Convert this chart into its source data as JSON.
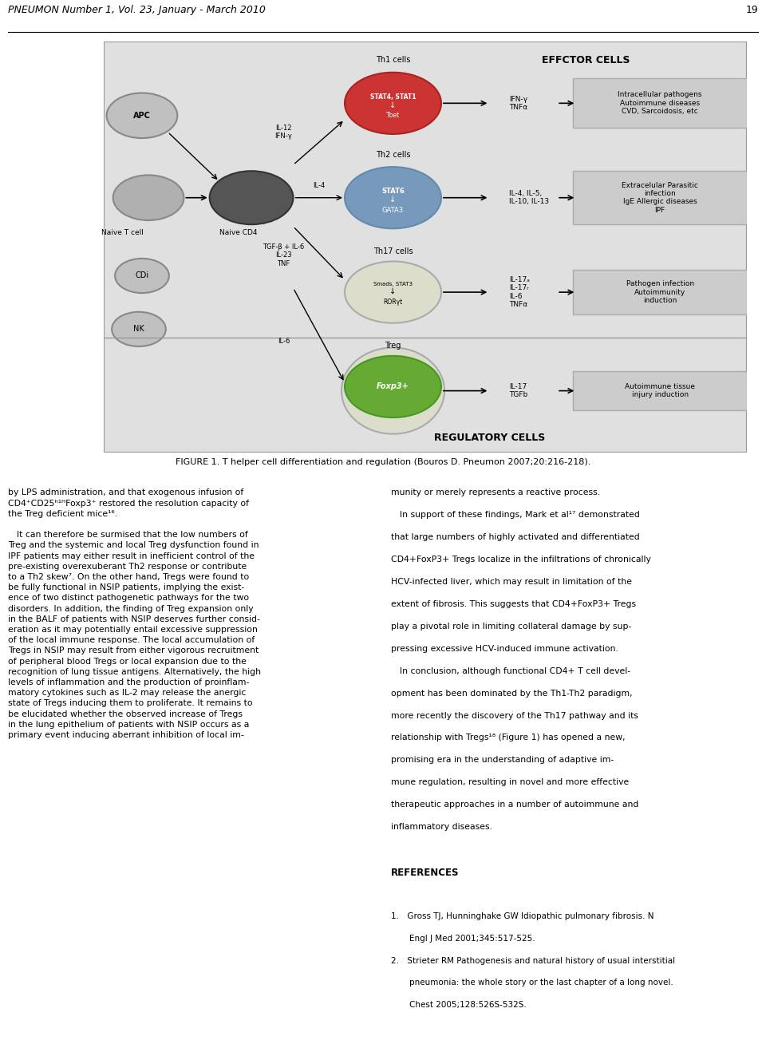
{
  "header_text": "PNEUMON Number 1, Vol. 23, January - March 2010",
  "page_number": "19",
  "figure_caption": "FIGURE 1. T helper cell differentiation and regulation (Bouros D. Pneumon 2007;20:216-218).",
  "diagram": {
    "bg_color": "#e8e8e8",
    "effector_label": "EFFCTOR CELLS",
    "regulatory_label": "REGULATORY CELLS",
    "th1_label": "Th1 cells",
    "th2_label": "Th2 cells",
    "th17_label": "Th17 cells",
    "treg_label": "Treg",
    "naive_t_label": "Naive T cell",
    "naive_cd4_label": "Naive CD4",
    "apc_label": "APC",
    "cdi_label": "CDi",
    "nk_label": "NK",
    "th1_circle_color": "#cc2222",
    "th2_circle_color": "#7799cc",
    "th17_circle_color": "#ddddcc",
    "treg_circle_color": "#66aa33",
    "naive_circle_color": "#aaaaaa",
    "il12_label": "IL-12\nIFN-γ",
    "il4_label": "IL-4",
    "tgfb_il6_label": "TGF-β + IL-6\nIL-23\nTNF",
    "il6_label": "IL-6",
    "th1_stat_label": "STAT4, STAT1\n↓\nTbet",
    "th2_stat_label": "STAT6\n↓\nGATA3",
    "th17_stat_label": "Smads, STAT3\n↓\nRORγt",
    "treg_stat_label": "Foxp3+",
    "th1_output": "IFN-γ\nTNFα",
    "th2_output": "IL-4, IL-5,\nIL-10, IL-13",
    "th17_output": "IL-17A\nIL-17r\nIL-6\nTNFα",
    "treg_output": "IL-17\nTGFb",
    "box1_label": "Intracellular pathogens\nAutoimmune diseases\nCVD, Sarcoidosis, etc",
    "box2_label": "Extracelular Parasitic\ninfection\nIgE Allergic diseases\nIPF",
    "box3_label": "Pathogen infection\nAutoimmunity\ninduction",
    "box4_label": "Autoimmune tissue\ninjury induction",
    "box_color": "#bbbbbb"
  },
  "left_column_text": [
    "by LPS administration, and that exogenous infusion of",
    "CD4⁺CD25ʰ¹ᴴFoxp3⁺ restored the resolution capacity of",
    "the Treg deficient mice¹⁶.",
    "",
    " It can therefore be surmised that the low numbers of",
    "Treg and the systemic and local Treg dysfunction found in",
    "IPF patients may either result in inefficient control of the",
    "pre-existing overexuberant Th2 response or contribute",
    "to a Th2 skew⁷. On the other hand, Tregs were found to",
    "be fully functional in NSIP patients, implying the exist-",
    "ence of two distinct pathogenetic pathways for the two",
    "disorders. In addition, the finding of Treg expansion only",
    "in the BALF of patients with NSIP deserves further consid-",
    "eration as it may potentially entail excessive suppression",
    "of the local immune response. The local accumulation of",
    "Tregs in NSIP may result from either vigorous recruitment",
    "of peripheral blood Tregs or local expansion due to the",
    "recognition of lung tissue antigens. Alternatively, the high",
    "levels of inflammation and the production of proinflam-",
    "matory cytokines such as IL-2 may release the anergic",
    "state of Tregs inducing them to proliferate. It remains to",
    "be elucidated whether the observed increase of Tregs",
    "in the lung epithelium of patients with NSIP occurs as a",
    "primary event inducing aberrant inhibition of local im-"
  ],
  "right_column_text": [
    "munity or merely represents a reactive process.",
    " In support of these findings, Mark et al¹⁷ demonstrated",
    "that large numbers of highly activated and differentiated",
    "CD4+FoxP3+ Tregs localize in the infiltrations of chronically",
    "HCV-infected liver, which may result in limitation of the",
    "extent of fibrosis. This suggests that CD4+FoxP3+ Tregs",
    "play a pivotal role in limiting collateral damage by sup-",
    "pressing excessive HCV-induced immune activation.",
    " In conclusion, although functional CD4+ T cell devel-",
    "opment has been dominated by the Th1-Th2 paradigm,",
    "more recently the discovery of the Th17 pathway and its",
    "relationship with Tregs¹⁸ (Figure 1) has opened a new,",
    "promising era in the understanding of adaptive im-",
    "mune regulation, resulting in novel and more effective",
    "therapeutic approaches in a number of autoimmune and",
    "inflammatory diseases.",
    "",
    "REFERENCES",
    "",
    "1. Gross TJ, Hunninghake GW Idiopathic pulmonary fibrosis. N",
    "   Engl J Med 2001;345:517-525.",
    "2. Strieter RM Pathogenesis and natural history of usual interstitial",
    "   pneumonia: the whole story or the last chapter of a long novel.",
    "   Chest 2005;128:526S-532S."
  ]
}
